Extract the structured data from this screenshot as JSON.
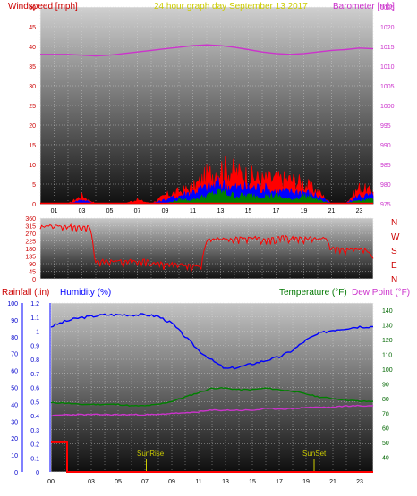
{
  "chart_data": [
    {
      "type": "area",
      "title": "24 hour graph day   September 13 2017",
      "left_axis_label": "Windspeed [mph]",
      "right_axis_label": "Barometer [mb]",
      "x_ticks": [
        "01",
        "03",
        "05",
        "07",
        "09",
        "11",
        "13",
        "15",
        "17",
        "19",
        "21",
        "23"
      ],
      "left_ticks": [
        "0",
        "5",
        "10",
        "15",
        "20",
        "25",
        "30",
        "35",
        "40",
        "45",
        "50"
      ],
      "right_ticks": [
        "975",
        "980",
        "985",
        "990",
        "995",
        "1000",
        "1005",
        "1010",
        "1015",
        "1020",
        "1025"
      ],
      "ylim_left": [
        0,
        50
      ],
      "ylim_right": [
        975,
        1025
      ],
      "x": [
        0,
        1,
        2,
        3,
        4,
        5,
        6,
        7,
        8,
        9,
        10,
        11,
        12,
        13,
        14,
        15,
        16,
        17,
        18,
        19,
        20,
        21,
        22,
        23,
        24
      ],
      "series": [
        {
          "role": "gust",
          "color": "#ff0000",
          "values": [
            0,
            0,
            0,
            2,
            0,
            0,
            0,
            1,
            0,
            2,
            3,
            4,
            7,
            9,
            8,
            7,
            6,
            6,
            6,
            5,
            3,
            0,
            0,
            4,
            3
          ]
        },
        {
          "role": "average",
          "color": "#0000ff",
          "values": [
            0,
            0,
            0,
            1,
            0,
            0,
            0,
            0,
            0,
            1,
            2,
            3,
            4,
            5,
            4,
            4,
            4,
            3,
            3,
            3,
            2,
            0,
            0,
            2,
            2
          ]
        },
        {
          "role": "minimum",
          "color": "#008000",
          "values": [
            0,
            0,
            0,
            0,
            0,
            0,
            0,
            0,
            0,
            0,
            1,
            1,
            2,
            3,
            2,
            2,
            2,
            2,
            1,
            2,
            1,
            0,
            0,
            1,
            1
          ]
        },
        {
          "role": "barometer",
          "color": "#cc33cc",
          "axis": "right",
          "values": [
            1013,
            1013,
            1013,
            1012.8,
            1012.6,
            1012.8,
            1013.2,
            1013.6,
            1014,
            1014.4,
            1014.8,
            1015.2,
            1015.4,
            1015.2,
            1014.8,
            1014.2,
            1013.6,
            1013.2,
            1013,
            1013.2,
            1013.6,
            1014,
            1014.2,
            1014.6,
            1014.4
          ]
        }
      ]
    },
    {
      "type": "line",
      "title": "",
      "y_ticks": [
        "0",
        "45",
        "90",
        "135",
        "180",
        "225",
        "270",
        "315",
        "360"
      ],
      "ylim": [
        0,
        360
      ],
      "compass_labels": [
        "N",
        "W",
        "S",
        "E",
        "N"
      ],
      "x": [
        0,
        1,
        2,
        3,
        4,
        5,
        6,
        7,
        8,
        9,
        10,
        11,
        12,
        13,
        14,
        15,
        16,
        17,
        18,
        19,
        20,
        21,
        22,
        23,
        24
      ],
      "series": [
        {
          "role": "wind_direction",
          "color": "#ff0000",
          "values": [
            315,
            315,
            315,
            315,
            110,
            110,
            110,
            110,
            100,
            90,
            85,
            80,
            240,
            240,
            245,
            250,
            240,
            250,
            245,
            245,
            240,
            185,
            180,
            175,
            120
          ]
        }
      ]
    },
    {
      "type": "line",
      "title": "",
      "header_labels": {
        "rainfall": "Rainfall (.in)",
        "humidity": "Humidity (%)",
        "temperature": "Temperature (°F)",
        "dew_point": "Dew Point (°F)"
      },
      "x_ticks": [
        "00",
        "03",
        "05",
        "07",
        "09",
        "11",
        "13",
        "15",
        "17",
        "19",
        "21",
        "23"
      ],
      "rain_ticks": [
        "0",
        "0.1",
        "0.2",
        "0.3",
        "0.4",
        "0.5",
        "0.6",
        "0.7",
        "0.8",
        "0.9",
        "1",
        "1.1",
        "1.2"
      ],
      "humidity_ticks": [
        "0",
        "10",
        "20",
        "30",
        "40",
        "50",
        "60",
        "70",
        "80",
        "90",
        "100"
      ],
      "temp_ticks": [
        "40",
        "50",
        "60",
        "70",
        "80",
        "90",
        "100",
        "110",
        "120",
        "130",
        "140"
      ],
      "ylim_rain": [
        0,
        1.2
      ],
      "ylim_humidity": [
        0,
        100
      ],
      "ylim_temp": [
        30,
        145
      ],
      "annotations": [
        {
          "text": "SunRise",
          "x": 7.1
        },
        {
          "text": "SunSet",
          "x": 19.6
        }
      ],
      "x": [
        0,
        1,
        2,
        3,
        4,
        5,
        6,
        7,
        8,
        9,
        10,
        11,
        12,
        13,
        14,
        15,
        16,
        17,
        18,
        19,
        20,
        21,
        22,
        23,
        24
      ],
      "series": [
        {
          "role": "humidity",
          "color": "#0000ff",
          "axis": "humidity",
          "values": [
            86,
            89,
            91,
            92,
            93,
            93,
            93,
            93,
            92,
            88,
            80,
            72,
            66,
            61,
            62,
            64,
            66,
            68,
            72,
            78,
            82,
            84,
            85,
            86,
            86
          ]
        },
        {
          "role": "temperature",
          "color": "#008000",
          "axis": "temp",
          "values": [
            77,
            77,
            76,
            76,
            76,
            76,
            75,
            75,
            76,
            78,
            81,
            84,
            87,
            87,
            86,
            86,
            87,
            86,
            85,
            83,
            81,
            80,
            79,
            78,
            78
          ]
        },
        {
          "role": "dew_point",
          "color": "#cc33cc",
          "axis": "temp",
          "values": [
            68,
            69,
            69,
            69,
            69,
            69,
            69,
            69,
            69,
            70,
            70,
            71,
            72,
            72,
            72,
            72,
            73,
            73,
            73,
            74,
            74,
            74,
            75,
            75,
            75
          ]
        },
        {
          "role": "rainfall",
          "color": "#ff0000",
          "axis": "rain",
          "values": [
            0.21,
            0.21,
            0,
            0,
            0,
            0,
            0,
            0,
            0,
            0,
            0,
            0,
            0,
            0,
            0,
            0,
            0,
            0,
            0,
            0,
            0,
            0,
            0,
            0,
            0
          ]
        }
      ]
    }
  ]
}
